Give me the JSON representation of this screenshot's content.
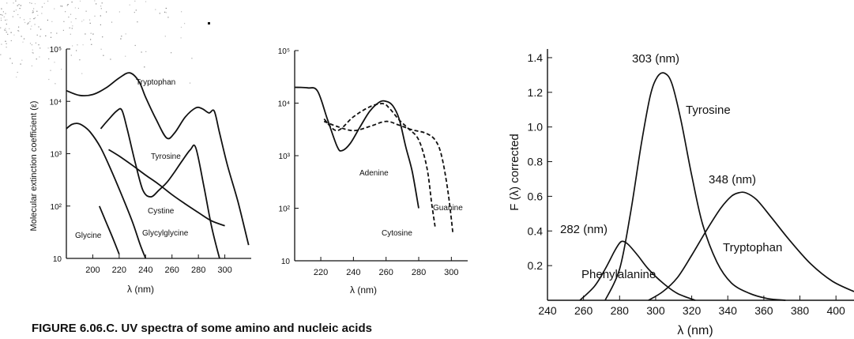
{
  "caption": "FIGURE 6.06.C. UV spectra of some amino and nucleic acids",
  "colors": {
    "ink": "#111111",
    "paper": "#ffffff",
    "speckle": "#555555"
  },
  "chart_data": [
    {
      "type": "line",
      "panel": "left",
      "xlabel": "λ (nm)",
      "ylabel": "Molecular extinction coefficient (ε)",
      "yscale": "log",
      "xlim": [
        180,
        320
      ],
      "ylim": [
        10,
        100000
      ],
      "xticks": [
        "200",
        "220",
        "240",
        "260",
        "280",
        "300"
      ],
      "yticks": [
        "10",
        "10²",
        "10³",
        "10⁴",
        "10⁵"
      ],
      "series": [
        {
          "name": "Tryptophan",
          "style": "solid",
          "x": [
            180,
            190,
            200,
            210,
            220,
            228,
            235,
            240,
            248,
            256,
            262,
            270,
            278,
            283,
            288,
            292,
            296,
            302,
            310,
            318
          ],
          "y": [
            16000,
            13000,
            13500,
            18000,
            28000,
            35000,
            24000,
            12000,
            4500,
            2000,
            2500,
            5000,
            7500,
            7200,
            6000,
            6500,
            2500,
            600,
            120,
            18
          ]
        },
        {
          "name": "Tyrosine",
          "style": "solid",
          "x": [
            206,
            212,
            218,
            222,
            226,
            232,
            238,
            244,
            250,
            256,
            262,
            268,
            274,
            278,
            284,
            290,
            296
          ],
          "y": [
            3000,
            4500,
            6500,
            6800,
            3000,
            700,
            200,
            150,
            200,
            280,
            450,
            750,
            1200,
            1300,
            250,
            40,
            10
          ]
        },
        {
          "name": "Cystine",
          "style": "solid",
          "x": [
            212,
            220,
            230,
            240,
            250,
            260,
            270,
            280,
            290,
            300
          ],
          "y": [
            1200,
            900,
            600,
            390,
            260,
            165,
            110,
            75,
            52,
            42
          ]
        },
        {
          "name": "Glycylglycine",
          "style": "solid",
          "x": [
            180,
            184,
            188,
            192,
            198,
            206,
            214,
            222,
            230,
            236,
            240
          ],
          "y": [
            3000,
            3600,
            3800,
            3500,
            2600,
            1300,
            480,
            160,
            50,
            18,
            10
          ]
        },
        {
          "name": "Glycine",
          "style": "solid",
          "x": [
            205,
            210,
            215,
            220
          ],
          "y": [
            100,
            50,
            25,
            12
          ]
        }
      ]
    },
    {
      "type": "line",
      "panel": "middle",
      "xlabel": "λ (nm)",
      "yscale": "log",
      "xlim": [
        204,
        310
      ],
      "ylim": [
        10,
        100000
      ],
      "xticks": [
        "220",
        "240",
        "260",
        "280",
        "300"
      ],
      "yticks": [
        "10",
        "10²",
        "10³",
        "10⁴",
        "10⁵"
      ],
      "series": [
        {
          "name": "Adenine",
          "style": "solid",
          "x": [
            204,
            212,
            218,
            224,
            230,
            233,
            238,
            244,
            250,
            256,
            260,
            264,
            268,
            272,
            276,
            280
          ],
          "y": [
            20000,
            19500,
            17000,
            5000,
            1500,
            1250,
            1700,
            3500,
            7000,
            10500,
            10800,
            9000,
            5000,
            1500,
            500,
            100
          ]
        },
        {
          "name": "Cytosine",
          "style": "dashed",
          "x": [
            222,
            230,
            240,
            250,
            258,
            262,
            268,
            274,
            280,
            285,
            288,
            290
          ],
          "y": [
            5000,
            3000,
            5500,
            8500,
            9800,
            8000,
            4800,
            3200,
            2000,
            600,
            120,
            45
          ]
        },
        {
          "name": "Guanine",
          "style": "dashed",
          "x": [
            222,
            230,
            240,
            250,
            260,
            268,
            276,
            284,
            290,
            294,
            298,
            301
          ],
          "y": [
            4500,
            3600,
            3000,
            3600,
            4500,
            3800,
            3100,
            2700,
            2000,
            1000,
            200,
            32
          ]
        }
      ]
    },
    {
      "type": "line",
      "panel": "right",
      "xlabel": "λ (nm)",
      "ylabel": "F (λ) corrected",
      "xlim": [
        240,
        410
      ],
      "ylim": [
        0,
        1.45
      ],
      "xticks": [
        "240",
        "260",
        "280",
        "300",
        "320",
        "340",
        "360",
        "380",
        "400"
      ],
      "yticks": [
        "0.2",
        "0.4",
        "0.6",
        "0.8",
        "1.0",
        "1.2",
        "1.4"
      ],
      "series": [
        {
          "name": "Phenylalanine",
          "peak_label": "282 (nm)",
          "x": [
            258,
            266,
            272,
            277,
            280,
            282,
            285,
            290,
            296,
            304,
            312,
            322
          ],
          "y": [
            0.0,
            0.08,
            0.18,
            0.28,
            0.33,
            0.34,
            0.32,
            0.26,
            0.18,
            0.1,
            0.04,
            0.0
          ]
        },
        {
          "name": "Tyrosine",
          "peak_label": "303 (nm)",
          "x": [
            272,
            280,
            286,
            292,
            297,
            301,
            305,
            309,
            314,
            320,
            326,
            334,
            342,
            352,
            362,
            372
          ],
          "y": [
            0.0,
            0.18,
            0.5,
            0.9,
            1.18,
            1.29,
            1.31,
            1.25,
            1.04,
            0.72,
            0.44,
            0.22,
            0.1,
            0.04,
            0.01,
            0.0
          ]
        },
        {
          "name": "Tryptophan",
          "peak_label": "348 (nm)",
          "x": [
            296,
            304,
            312,
            320,
            328,
            336,
            342,
            346,
            350,
            356,
            364,
            374,
            386,
            398,
            410
          ],
          "y": [
            0.0,
            0.05,
            0.13,
            0.26,
            0.4,
            0.53,
            0.6,
            0.62,
            0.62,
            0.58,
            0.48,
            0.35,
            0.21,
            0.11,
            0.05
          ]
        }
      ]
    }
  ]
}
